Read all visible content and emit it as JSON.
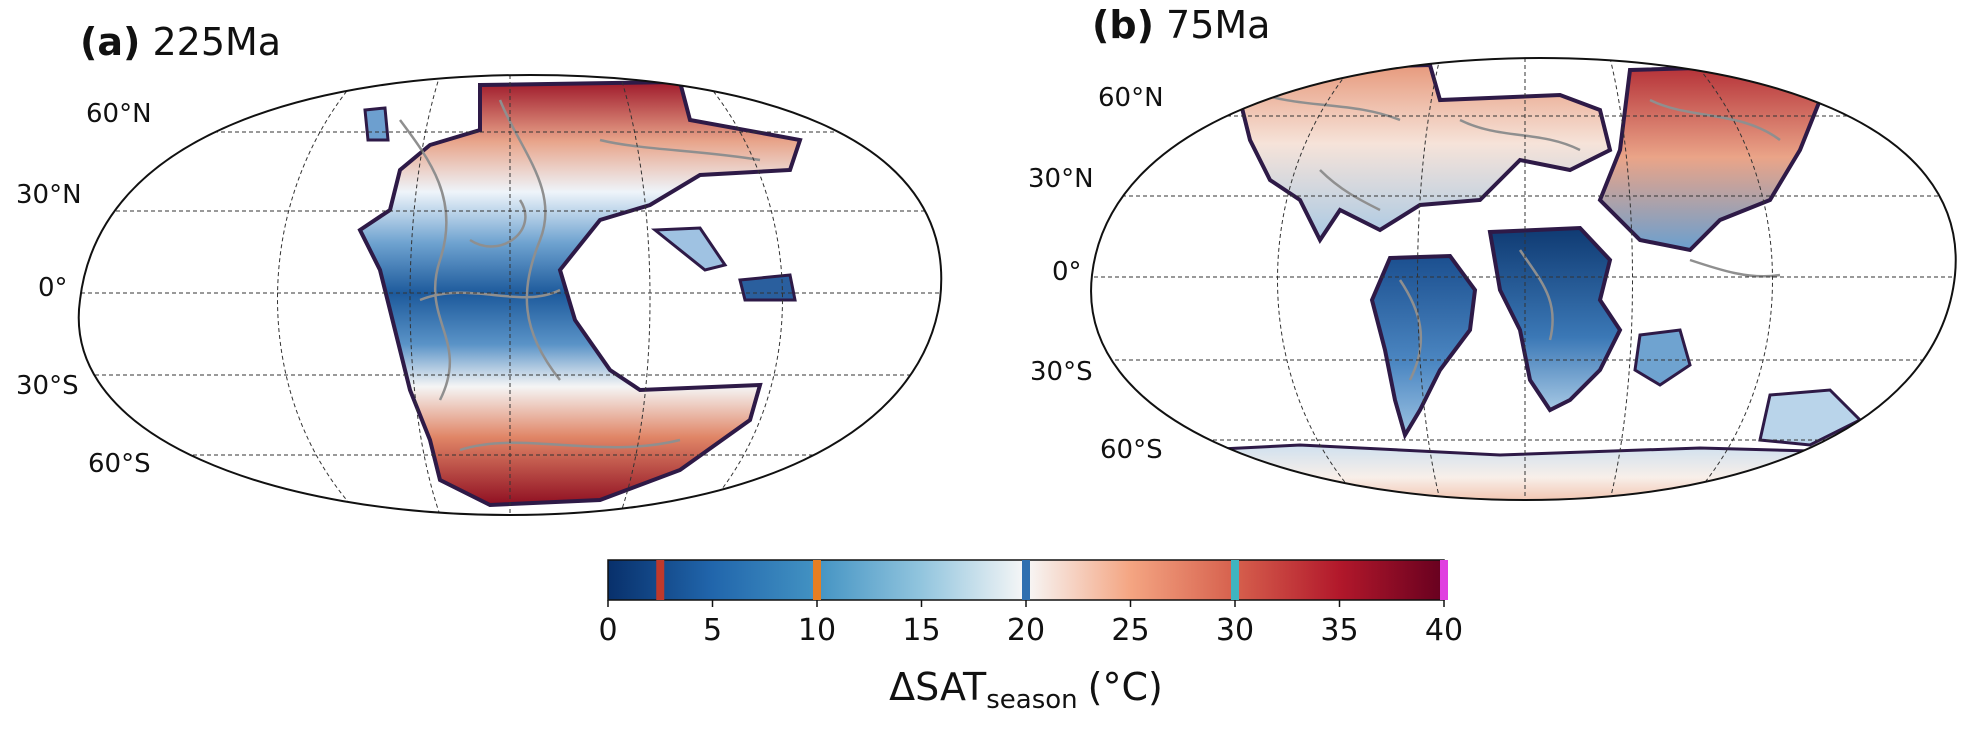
{
  "panels": [
    {
      "id": "a",
      "letter": "(a)",
      "age": "225Ma",
      "lat_labels": [
        "60°N",
        "30°N",
        "0°",
        "30°S",
        "60°S"
      ]
    },
    {
      "id": "b",
      "letter": "(b)",
      "age": "75Ma",
      "lat_labels": [
        "60°N",
        "30°N",
        "0°",
        "30°S",
        "60°S"
      ]
    }
  ],
  "colorbar": {
    "label_main": "ΔSAT",
    "label_sub": "season",
    "label_unit": "(°C)",
    "ticks": [
      "0",
      "5",
      "10",
      "15",
      "20",
      "25",
      "30",
      "35",
      "40"
    ],
    "range": [
      0,
      40
    ],
    "colormap": "RdBu_r",
    "markers": [
      {
        "value": 2.5,
        "color": "#c0392b"
      },
      {
        "value": 10,
        "color": "#e67e22"
      },
      {
        "value": 20,
        "color": "#2f6fb0"
      },
      {
        "value": 30,
        "color": "#3fb5c0"
      },
      {
        "value": 40,
        "color": "#e040e0"
      }
    ]
  },
  "colors": {
    "land_outline": "#2e1a47",
    "coastline": "#8f8f8f",
    "gridline": "#333333"
  }
}
